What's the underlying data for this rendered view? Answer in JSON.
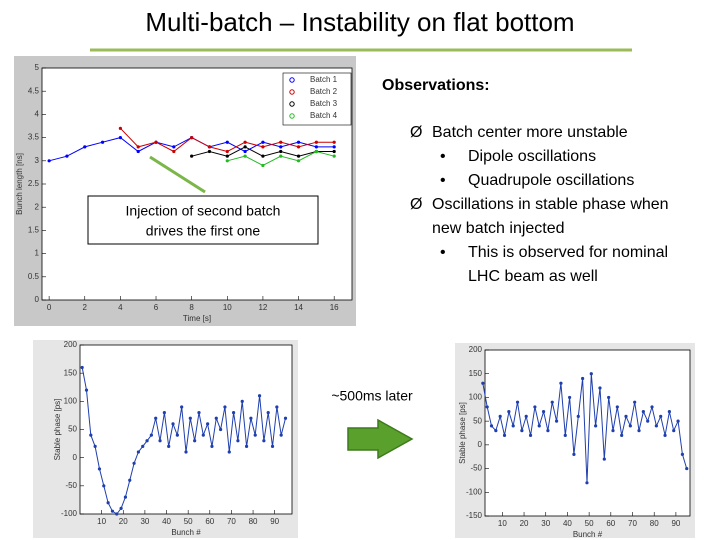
{
  "title": "Multi-batch – Instability on flat bottom",
  "top_plot": {
    "ylabel": "Bunch length [ns]",
    "xlabel": "Time [s]",
    "xlim": [
      -0.4,
      17
    ],
    "ylim": [
      0,
      5
    ],
    "xticks": [
      0,
      2,
      4,
      6,
      8,
      10,
      12,
      14,
      16
    ],
    "yticks": [
      0,
      0.5,
      1,
      1.5,
      2,
      2.5,
      3,
      3.5,
      4,
      4.5,
      5
    ],
    "series": [
      {
        "name": "Batch 1",
        "color": "#0000ff",
        "x": [
          0,
          1,
          2,
          3,
          4,
          5,
          6,
          7,
          8,
          9,
          10,
          11,
          12,
          13,
          14,
          15,
          16
        ],
        "values": [
          3.0,
          3.1,
          3.3,
          3.4,
          3.5,
          3.2,
          3.4,
          3.3,
          3.5,
          3.3,
          3.4,
          3.2,
          3.4,
          3.3,
          3.4,
          3.3,
          3.3
        ]
      },
      {
        "name": "Batch 2",
        "color": "#cc0000",
        "x": [
          4,
          5,
          6,
          7,
          8,
          9,
          10,
          11,
          12,
          13,
          14,
          15,
          16
        ],
        "values": [
          3.7,
          3.3,
          3.4,
          3.2,
          3.5,
          3.3,
          3.2,
          3.4,
          3.3,
          3.4,
          3.3,
          3.4,
          3.4
        ]
      },
      {
        "name": "Batch 3",
        "color": "#000000",
        "x": [
          8,
          9,
          10,
          11,
          12,
          13,
          14,
          15,
          16
        ],
        "values": [
          3.1,
          3.2,
          3.1,
          3.3,
          3.1,
          3.2,
          3.1,
          3.2,
          3.2
        ]
      },
      {
        "name": "Batch 4",
        "color": "#22bb22",
        "x": [
          10,
          11,
          12,
          13,
          14,
          15,
          16
        ],
        "values": [
          3.0,
          3.1,
          2.9,
          3.1,
          3.0,
          3.2,
          3.1
        ]
      }
    ]
  },
  "callout": [
    "Injection of second batch",
    "drives the first one"
  ],
  "observations": {
    "heading": "Observations:",
    "items": [
      {
        "marker": "Ø",
        "lines": [
          "Batch center more unstable"
        ]
      },
      {
        "marker": "•",
        "lines": [
          "Dipole oscillations"
        ]
      },
      {
        "marker": "•",
        "lines": [
          "Quadrupole oscillations"
        ]
      },
      {
        "marker": "Ø",
        "lines": [
          "Oscillations in stable phase when",
          "new batch injected"
        ]
      },
      {
        "marker": "•",
        "lines": [
          "This is observed for nominal",
          "LHC beam as well"
        ]
      }
    ]
  },
  "later_label": "~500ms later",
  "bottom_plots": [
    {
      "ylabel": "Stable phase [ps]",
      "xlabel": "Bunch #",
      "xlim": [
        0,
        98
      ],
      "ylim": [
        -100,
        200
      ],
      "xticks": [
        10,
        20,
        30,
        40,
        50,
        60,
        70,
        80,
        90
      ],
      "yticks": [
        -100,
        -50,
        0,
        50,
        100,
        150,
        200
      ],
      "color": "#1f3fae",
      "x": [
        1,
        3,
        5,
        7,
        9,
        11,
        13,
        15,
        17,
        19,
        21,
        23,
        25,
        27,
        29,
        31,
        33,
        35,
        37,
        39,
        41,
        43,
        45,
        47,
        49,
        51,
        53,
        55,
        57,
        59,
        61,
        63,
        65,
        67,
        69,
        71,
        73,
        75,
        77,
        79,
        81,
        83,
        85,
        87,
        89,
        91,
        93,
        95
      ],
      "values": [
        160,
        120,
        40,
        20,
        -20,
        -50,
        -80,
        -95,
        -100,
        -90,
        -70,
        -40,
        -10,
        10,
        20,
        30,
        40,
        70,
        30,
        80,
        20,
        60,
        40,
        90,
        10,
        70,
        30,
        80,
        40,
        60,
        20,
        70,
        50,
        90,
        10,
        80,
        30,
        100,
        20,
        70,
        40,
        110,
        30,
        80,
        20,
        90,
        40,
        70
      ]
    },
    {
      "ylabel": "Stable phase [ps]",
      "xlabel": "Bunch #",
      "xlim": [
        2,
        96.5
      ],
      "ylim": [
        -150,
        200
      ],
      "xticks": [
        10,
        20,
        30,
        40,
        50,
        60,
        70,
        80,
        90
      ],
      "yticks": [
        -150,
        -100,
        -50,
        0,
        50,
        100,
        150,
        200
      ],
      "color": "#1f3fae",
      "x": [
        1,
        3,
        5,
        7,
        9,
        11,
        13,
        15,
        17,
        19,
        21,
        23,
        25,
        27,
        29,
        31,
        33,
        35,
        37,
        39,
        41,
        43,
        45,
        47,
        49,
        51,
        53,
        55,
        57,
        59,
        61,
        63,
        65,
        67,
        69,
        71,
        73,
        75,
        77,
        79,
        81,
        83,
        85,
        87,
        89,
        91,
        93,
        95
      ],
      "values": [
        130,
        80,
        40,
        30,
        60,
        20,
        70,
        40,
        90,
        30,
        60,
        20,
        80,
        40,
        70,
        30,
        90,
        50,
        130,
        20,
        100,
        -20,
        60,
        140,
        -80,
        150,
        40,
        120,
        -30,
        100,
        30,
        80,
        20,
        60,
        40,
        90,
        30,
        70,
        50,
        80,
        40,
        60,
        20,
        70,
        30,
        50,
        -20,
        -50
      ]
    }
  ]
}
